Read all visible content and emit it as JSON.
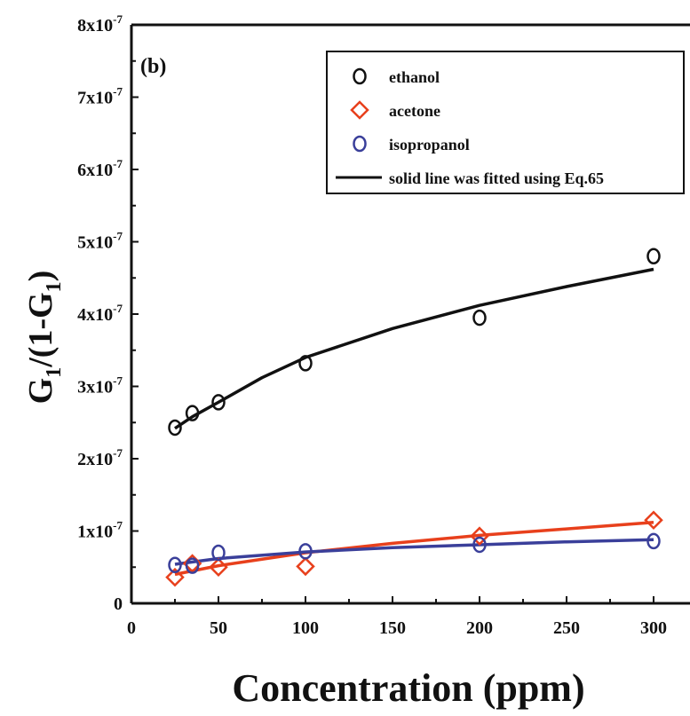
{
  "chart_data": {
    "type": "scatter",
    "panel_label": "(b)",
    "xlabel": "Concentration (ppm)",
    "ylabel": {
      "main": "G",
      "sub1": "1",
      "mid": "/(1-G",
      "sub2": "1",
      "end": ")"
    },
    "xlim": [
      0,
      300
    ],
    "ylim": [
      0,
      8e-07
    ],
    "xticks": [
      0,
      50,
      100,
      150,
      200,
      250,
      300
    ],
    "yticks": [
      {
        "value": 0,
        "label": "0",
        "exp": ""
      },
      {
        "value": 1e-07,
        "label": "1x10",
        "exp": "-7"
      },
      {
        "value": 2e-07,
        "label": "2x10",
        "exp": "-7"
      },
      {
        "value": 3e-07,
        "label": "3x10",
        "exp": "-7"
      },
      {
        "value": 4e-07,
        "label": "4x10",
        "exp": "-7"
      },
      {
        "value": 5e-07,
        "label": "5x10",
        "exp": "-7"
      },
      {
        "value": 6e-07,
        "label": "6x10",
        "exp": "-7"
      },
      {
        "value": 7e-07,
        "label": "7x10",
        "exp": "-7"
      },
      {
        "value": 8e-07,
        "label": "8x10",
        "exp": "-7"
      }
    ],
    "grid": false,
    "legend_position": "top-right",
    "series": [
      {
        "name": "ethanol",
        "marker": "circle",
        "color": "#111111",
        "x": [
          25,
          35,
          50,
          100,
          200,
          300
        ],
        "y": [
          2.43e-07,
          2.63e-07,
          2.78e-07,
          3.32e-07,
          3.95e-07,
          4.8e-07
        ],
        "fit_color": "#111111",
        "fit": {
          "x": [
            25,
            35,
            50,
            75,
            100,
            150,
            200,
            250,
            300
          ],
          "y": [
            2.42e-07,
            2.58e-07,
            2.78e-07,
            3.12e-07,
            3.4e-07,
            3.8e-07,
            4.12e-07,
            4.38e-07,
            4.62e-07
          ]
        }
      },
      {
        "name": "acetone",
        "marker": "diamond",
        "color": "#e8401c",
        "x": [
          25,
          35,
          50,
          100,
          200,
          300
        ],
        "y": [
          3.6e-08,
          5.5e-08,
          5e-08,
          5.1e-08,
          9.3e-08,
          1.15e-07
        ],
        "fit_color": "#e8401c",
        "fit": {
          "x": [
            25,
            50,
            100,
            150,
            200,
            250,
            300
          ],
          "y": [
            4e-08,
            5.2e-08,
            7e-08,
            8.3e-08,
            9.4e-08,
            1.03e-07,
            1.12e-07
          ]
        }
      },
      {
        "name": "isopropanol",
        "marker": "circle",
        "color": "#3a3f9a",
        "x": [
          25,
          35,
          50,
          100,
          200,
          300
        ],
        "y": [
          5.3e-08,
          5.2e-08,
          7e-08,
          7.2e-08,
          8.1e-08,
          8.6e-08
        ],
        "fit_color": "#3a3f9a",
        "fit": {
          "x": [
            25,
            50,
            100,
            150,
            200,
            250,
            300
          ],
          "y": [
            5.4e-08,
            6.2e-08,
            7.1e-08,
            7.7e-08,
            8.1e-08,
            8.5e-08,
            8.8e-08
          ]
        }
      }
    ],
    "legend": [
      {
        "label": "ethanol",
        "symbol": "circle",
        "color": "#111111"
      },
      {
        "label": "acetone",
        "symbol": "diamond",
        "color": "#e8401c"
      },
      {
        "label": "isopropanol",
        "symbol": "circle",
        "color": "#3a3f9a"
      },
      {
        "label": "solid line was fitted using Eq.65",
        "symbol": "line",
        "color": "#111111"
      }
    ]
  }
}
